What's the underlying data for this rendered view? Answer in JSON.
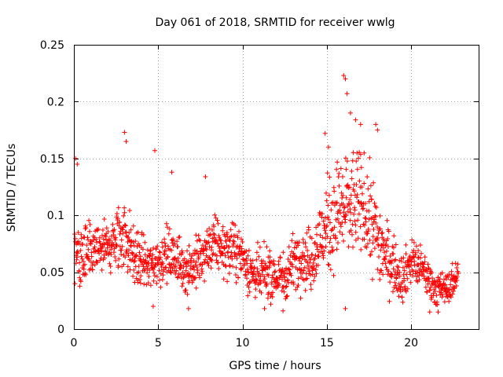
{
  "chart_data": {
    "type": "scatter",
    "title": "Day 061 of 2018, SRMTID for receiver wwlg",
    "xlabel": "GPS time / hours",
    "ylabel": "SRMTID / TECUs",
    "xlim": [
      0,
      24
    ],
    "ylim": [
      0,
      0.25
    ],
    "xticks": [
      0,
      5,
      10,
      15,
      20
    ],
    "xtick_labels": [
      "0",
      "5",
      "10",
      "15",
      "20"
    ],
    "yticks": [
      0,
      0.05,
      0.1,
      0.15,
      0.2,
      0.25
    ],
    "ytick_labels": [
      "0",
      "0.05",
      "0.1",
      "0.15",
      "0.2",
      "0.25"
    ],
    "grid": true,
    "marker": "+",
    "color": "#ff0000",
    "data_span_hours": [
      0,
      22.8
    ],
    "trend": {
      "x": [
        0,
        0.5,
        1,
        1.5,
        2,
        2.5,
        3,
        3.5,
        4,
        4.5,
        5,
        5.5,
        6,
        6.5,
        7,
        7.5,
        8,
        8.5,
        9,
        9.5,
        10,
        10.5,
        11,
        11.5,
        12,
        12.5,
        13,
        13.5,
        14,
        14.5,
        15,
        15.5,
        16,
        16.5,
        17,
        17.5,
        18,
        18.5,
        19,
        19.5,
        20,
        20.5,
        21,
        21.5,
        22,
        22.5,
        22.8
      ],
      "y": [
        0.07,
        0.065,
        0.065,
        0.07,
        0.072,
        0.075,
        0.085,
        0.065,
        0.06,
        0.055,
        0.06,
        0.065,
        0.062,
        0.055,
        0.055,
        0.06,
        0.07,
        0.075,
        0.07,
        0.07,
        0.065,
        0.05,
        0.045,
        0.05,
        0.045,
        0.045,
        0.06,
        0.065,
        0.06,
        0.075,
        0.09,
        0.1,
        0.105,
        0.11,
        0.11,
        0.1,
        0.08,
        0.065,
        0.055,
        0.045,
        0.06,
        0.055,
        0.045,
        0.035,
        0.035,
        0.04,
        0.055
      ]
    },
    "spread": {
      "x": [
        0,
        2,
        3,
        4,
        6,
        8,
        10,
        12,
        13,
        14,
        15,
        16,
        17,
        18,
        19,
        20,
        21,
        22,
        22.8
      ],
      "y": [
        0.025,
        0.02,
        0.03,
        0.02,
        0.02,
        0.02,
        0.02,
        0.02,
        0.02,
        0.025,
        0.035,
        0.045,
        0.04,
        0.035,
        0.02,
        0.018,
        0.015,
        0.012,
        0.012
      ]
    },
    "peaks": [
      {
        "x": 0.1,
        "y": 0.15
      },
      {
        "x": 0.2,
        "y": 0.145
      },
      {
        "x": 3.0,
        "y": 0.173
      },
      {
        "x": 3.1,
        "y": 0.165
      },
      {
        "x": 4.8,
        "y": 0.157
      },
      {
        "x": 5.8,
        "y": 0.138
      },
      {
        "x": 7.8,
        "y": 0.134
      },
      {
        "x": 14.9,
        "y": 0.172
      },
      {
        "x": 15.1,
        "y": 0.16
      },
      {
        "x": 16.0,
        "y": 0.223
      },
      {
        "x": 16.1,
        "y": 0.22
      },
      {
        "x": 16.2,
        "y": 0.207
      },
      {
        "x": 16.4,
        "y": 0.19
      },
      {
        "x": 16.7,
        "y": 0.184
      },
      {
        "x": 17.0,
        "y": 0.18
      },
      {
        "x": 17.9,
        "y": 0.18
      },
      {
        "x": 18.0,
        "y": 0.175
      }
    ],
    "lows": [
      {
        "x": 4.7,
        "y": 0.02
      },
      {
        "x": 6.8,
        "y": 0.018
      },
      {
        "x": 11.3,
        "y": 0.018
      },
      {
        "x": 12.4,
        "y": 0.016
      },
      {
        "x": 16.1,
        "y": 0.018
      },
      {
        "x": 21.1,
        "y": 0.015
      },
      {
        "x": 21.6,
        "y": 0.015
      }
    ]
  }
}
